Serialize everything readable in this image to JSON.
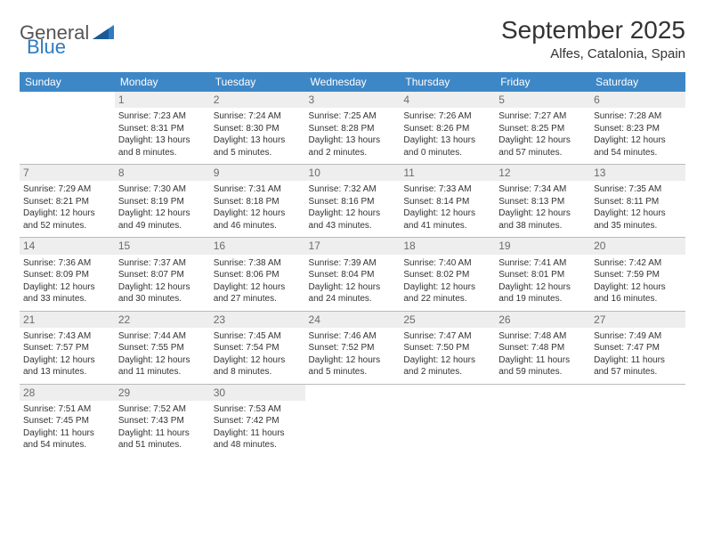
{
  "logo": {
    "general": "General",
    "blue": "Blue"
  },
  "title": "September 2025",
  "location": "Alfes, Catalonia, Spain",
  "colors": {
    "header_bg": "#3d87c7",
    "header_text": "#ffffff",
    "daynum_bg": "#eeeeee",
    "daynum_text": "#6b6b6b",
    "border": "#bbbbbb",
    "logo_blue": "#2f7bbf"
  },
  "weekdays": [
    "Sunday",
    "Monday",
    "Tuesday",
    "Wednesday",
    "Thursday",
    "Friday",
    "Saturday"
  ],
  "weeks": [
    [
      {
        "day": "",
        "lines": []
      },
      {
        "day": "1",
        "lines": [
          "Sunrise: 7:23 AM",
          "Sunset: 8:31 PM",
          "Daylight: 13 hours and 8 minutes."
        ]
      },
      {
        "day": "2",
        "lines": [
          "Sunrise: 7:24 AM",
          "Sunset: 8:30 PM",
          "Daylight: 13 hours and 5 minutes."
        ]
      },
      {
        "day": "3",
        "lines": [
          "Sunrise: 7:25 AM",
          "Sunset: 8:28 PM",
          "Daylight: 13 hours and 2 minutes."
        ]
      },
      {
        "day": "4",
        "lines": [
          "Sunrise: 7:26 AM",
          "Sunset: 8:26 PM",
          "Daylight: 13 hours and 0 minutes."
        ]
      },
      {
        "day": "5",
        "lines": [
          "Sunrise: 7:27 AM",
          "Sunset: 8:25 PM",
          "Daylight: 12 hours and 57 minutes."
        ]
      },
      {
        "day": "6",
        "lines": [
          "Sunrise: 7:28 AM",
          "Sunset: 8:23 PM",
          "Daylight: 12 hours and 54 minutes."
        ]
      }
    ],
    [
      {
        "day": "7",
        "lines": [
          "Sunrise: 7:29 AM",
          "Sunset: 8:21 PM",
          "Daylight: 12 hours and 52 minutes."
        ]
      },
      {
        "day": "8",
        "lines": [
          "Sunrise: 7:30 AM",
          "Sunset: 8:19 PM",
          "Daylight: 12 hours and 49 minutes."
        ]
      },
      {
        "day": "9",
        "lines": [
          "Sunrise: 7:31 AM",
          "Sunset: 8:18 PM",
          "Daylight: 12 hours and 46 minutes."
        ]
      },
      {
        "day": "10",
        "lines": [
          "Sunrise: 7:32 AM",
          "Sunset: 8:16 PM",
          "Daylight: 12 hours and 43 minutes."
        ]
      },
      {
        "day": "11",
        "lines": [
          "Sunrise: 7:33 AM",
          "Sunset: 8:14 PM",
          "Daylight: 12 hours and 41 minutes."
        ]
      },
      {
        "day": "12",
        "lines": [
          "Sunrise: 7:34 AM",
          "Sunset: 8:13 PM",
          "Daylight: 12 hours and 38 minutes."
        ]
      },
      {
        "day": "13",
        "lines": [
          "Sunrise: 7:35 AM",
          "Sunset: 8:11 PM",
          "Daylight: 12 hours and 35 minutes."
        ]
      }
    ],
    [
      {
        "day": "14",
        "lines": [
          "Sunrise: 7:36 AM",
          "Sunset: 8:09 PM",
          "Daylight: 12 hours and 33 minutes."
        ]
      },
      {
        "day": "15",
        "lines": [
          "Sunrise: 7:37 AM",
          "Sunset: 8:07 PM",
          "Daylight: 12 hours and 30 minutes."
        ]
      },
      {
        "day": "16",
        "lines": [
          "Sunrise: 7:38 AM",
          "Sunset: 8:06 PM",
          "Daylight: 12 hours and 27 minutes."
        ]
      },
      {
        "day": "17",
        "lines": [
          "Sunrise: 7:39 AM",
          "Sunset: 8:04 PM",
          "Daylight: 12 hours and 24 minutes."
        ]
      },
      {
        "day": "18",
        "lines": [
          "Sunrise: 7:40 AM",
          "Sunset: 8:02 PM",
          "Daylight: 12 hours and 22 minutes."
        ]
      },
      {
        "day": "19",
        "lines": [
          "Sunrise: 7:41 AM",
          "Sunset: 8:01 PM",
          "Daylight: 12 hours and 19 minutes."
        ]
      },
      {
        "day": "20",
        "lines": [
          "Sunrise: 7:42 AM",
          "Sunset: 7:59 PM",
          "Daylight: 12 hours and 16 minutes."
        ]
      }
    ],
    [
      {
        "day": "21",
        "lines": [
          "Sunrise: 7:43 AM",
          "Sunset: 7:57 PM",
          "Daylight: 12 hours and 13 minutes."
        ]
      },
      {
        "day": "22",
        "lines": [
          "Sunrise: 7:44 AM",
          "Sunset: 7:55 PM",
          "Daylight: 12 hours and 11 minutes."
        ]
      },
      {
        "day": "23",
        "lines": [
          "Sunrise: 7:45 AM",
          "Sunset: 7:54 PM",
          "Daylight: 12 hours and 8 minutes."
        ]
      },
      {
        "day": "24",
        "lines": [
          "Sunrise: 7:46 AM",
          "Sunset: 7:52 PM",
          "Daylight: 12 hours and 5 minutes."
        ]
      },
      {
        "day": "25",
        "lines": [
          "Sunrise: 7:47 AM",
          "Sunset: 7:50 PM",
          "Daylight: 12 hours and 2 minutes."
        ]
      },
      {
        "day": "26",
        "lines": [
          "Sunrise: 7:48 AM",
          "Sunset: 7:48 PM",
          "Daylight: 11 hours and 59 minutes."
        ]
      },
      {
        "day": "27",
        "lines": [
          "Sunrise: 7:49 AM",
          "Sunset: 7:47 PM",
          "Daylight: 11 hours and 57 minutes."
        ]
      }
    ],
    [
      {
        "day": "28",
        "lines": [
          "Sunrise: 7:51 AM",
          "Sunset: 7:45 PM",
          "Daylight: 11 hours and 54 minutes."
        ]
      },
      {
        "day": "29",
        "lines": [
          "Sunrise: 7:52 AM",
          "Sunset: 7:43 PM",
          "Daylight: 11 hours and 51 minutes."
        ]
      },
      {
        "day": "30",
        "lines": [
          "Sunrise: 7:53 AM",
          "Sunset: 7:42 PM",
          "Daylight: 11 hours and 48 minutes."
        ]
      },
      {
        "day": "",
        "lines": []
      },
      {
        "day": "",
        "lines": []
      },
      {
        "day": "",
        "lines": []
      },
      {
        "day": "",
        "lines": []
      }
    ]
  ]
}
